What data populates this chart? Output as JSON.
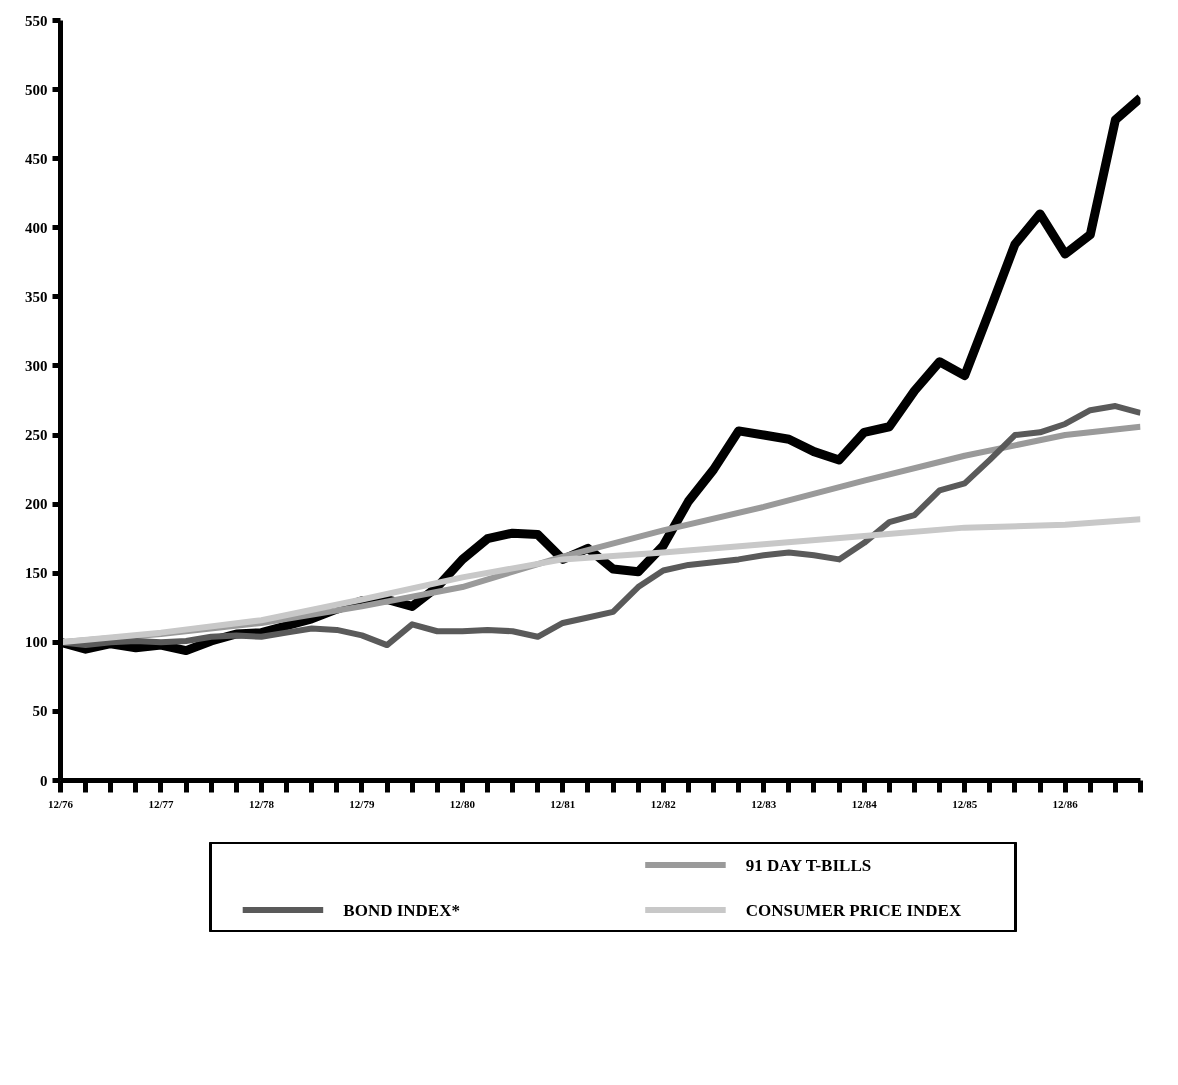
{
  "chart_data": {
    "type": "line",
    "xlim": [
      "1976-12",
      "1987-09"
    ],
    "ylim": [
      0,
      550
    ],
    "yticks": [
      0,
      50,
      100,
      150,
      200,
      250,
      300,
      350,
      400,
      450,
      500,
      550
    ],
    "xticks": [
      {
        "value": "1976-12",
        "label": "12/76"
      },
      {
        "value": "1977-03",
        "label": null
      },
      {
        "value": "1977-06",
        "label": null
      },
      {
        "value": "1977-09",
        "label": null
      },
      {
        "value": "1977-12",
        "label": "12/77"
      },
      {
        "value": "1978-03",
        "label": null
      },
      {
        "value": "1978-06",
        "label": null
      },
      {
        "value": "1978-09",
        "label": null
      },
      {
        "value": "1978-12",
        "label": "12/78"
      },
      {
        "value": "1979-03",
        "label": null
      },
      {
        "value": "1979-06",
        "label": null
      },
      {
        "value": "1979-09",
        "label": null
      },
      {
        "value": "1979-12",
        "label": "12/79"
      },
      {
        "value": "1980-03",
        "label": null
      },
      {
        "value": "1980-06",
        "label": null
      },
      {
        "value": "1980-09",
        "label": null
      },
      {
        "value": "1980-12",
        "label": "12/80"
      },
      {
        "value": "1981-03",
        "label": null
      },
      {
        "value": "1981-06",
        "label": null
      },
      {
        "value": "1981-09",
        "label": null
      },
      {
        "value": "1981-12",
        "label": "12/81"
      },
      {
        "value": "1982-03",
        "label": null
      },
      {
        "value": "1982-06",
        "label": null
      },
      {
        "value": "1982-09",
        "label": null
      },
      {
        "value": "1982-12",
        "label": "12/82"
      },
      {
        "value": "1983-03",
        "label": null
      },
      {
        "value": "1983-06",
        "label": null
      },
      {
        "value": "1983-09",
        "label": null
      },
      {
        "value": "1983-12",
        "label": "12/83"
      },
      {
        "value": "1984-03",
        "label": null
      },
      {
        "value": "1984-06",
        "label": null
      },
      {
        "value": "1984-09",
        "label": null
      },
      {
        "value": "1984-12",
        "label": "12/84"
      },
      {
        "value": "1985-03",
        "label": null
      },
      {
        "value": "1985-06",
        "label": null
      },
      {
        "value": "1985-09",
        "label": null
      },
      {
        "value": "1985-12",
        "label": "12/85"
      },
      {
        "value": "1986-03",
        "label": null
      },
      {
        "value": "1986-06",
        "label": null
      },
      {
        "value": "1986-09",
        "label": null
      },
      {
        "value": "1986-12",
        "label": "12/86"
      },
      {
        "value": "1987-03",
        "label": null
      },
      {
        "value": "1987-06",
        "label": null
      },
      {
        "value": "1987-09",
        "label": null
      }
    ],
    "grid": false,
    "legend": "bottom",
    "series": [
      {
        "color": "#000000",
        "x": [
          "1976-12",
          "1977-03",
          "1977-06",
          "1977-09",
          "1977-12",
          "1978-03",
          "1978-06",
          "1978-09",
          "1978-12",
          "1979-03",
          "1979-06",
          "1979-09",
          "1979-12",
          "1980-03",
          "1980-06",
          "1980-09",
          "1980-12",
          "1981-03",
          "1981-06",
          "1981-09",
          "1981-12",
          "1982-03",
          "1982-06",
          "1982-09",
          "1982-12",
          "1983-03",
          "1983-06",
          "1983-09",
          "1983-12",
          "1984-03",
          "1984-06",
          "1984-09",
          "1984-12",
          "1985-03",
          "1985-06",
          "1985-09",
          "1985-12",
          "1986-03",
          "1986-06",
          "1986-09",
          "1986-12",
          "1987-03",
          "1987-06",
          "1987-09"
        ],
        "values": [
          100,
          95,
          99,
          96,
          98,
          94,
          101,
          106,
          107,
          112,
          117,
          124,
          130,
          131,
          126,
          140,
          160,
          175,
          179,
          178,
          160,
          168,
          153,
          151,
          170,
          202,
          225,
          253,
          250,
          247,
          238,
          232,
          252,
          256,
          282,
          303,
          293,
          340,
          388,
          410,
          381,
          395,
          478,
          494
        ]
      },
      {
        "name": "91 DAY T-BILLS",
        "color": "#9a9a9a",
        "x": [
          "1976-12",
          "1977-12",
          "1978-12",
          "1979-12",
          "1980-12",
          "1981-12",
          "1982-12",
          "1983-12",
          "1984-12",
          "1985-12",
          "1986-12",
          "1987-09"
        ],
        "values": [
          100,
          106,
          114,
          126,
          140,
          162,
          181,
          198,
          217,
          235,
          250,
          256
        ]
      },
      {
        "name": "BOND INDEX*",
        "color": "#5a5a5a",
        "x": [
          "1976-12",
          "1977-03",
          "1977-06",
          "1977-09",
          "1977-12",
          "1978-03",
          "1978-06",
          "1978-09",
          "1978-12",
          "1979-03",
          "1979-06",
          "1979-09",
          "1979-12",
          "1980-03",
          "1980-06",
          "1980-09",
          "1980-12",
          "1981-03",
          "1981-06",
          "1981-09",
          "1981-12",
          "1982-03",
          "1982-06",
          "1982-09",
          "1982-12",
          "1983-03",
          "1983-06",
          "1983-09",
          "1983-12",
          "1984-03",
          "1984-06",
          "1984-09",
          "1984-12",
          "1985-03",
          "1985-06",
          "1985-09",
          "1985-12",
          "1986-03",
          "1986-06",
          "1986-09",
          "1986-12",
          "1987-03",
          "1987-06",
          "1987-09"
        ],
        "values": [
          100,
          98,
          100,
          101,
          100,
          101,
          104,
          105,
          104,
          107,
          110,
          109,
          105,
          98,
          113,
          108,
          108,
          109,
          108,
          104,
          114,
          118,
          122,
          140,
          152,
          156,
          158,
          160,
          163,
          165,
          163,
          160,
          172,
          187,
          192,
          210,
          215,
          232,
          250,
          252,
          258,
          268,
          271,
          266
        ]
      },
      {
        "name": "CONSUMER PRICE INDEX",
        "color": "#c8c8c8",
        "x": [
          "1976-12",
          "1977-12",
          "1978-12",
          "1979-12",
          "1980-12",
          "1981-12",
          "1982-12",
          "1983-12",
          "1984-12",
          "1985-12",
          "1986-12",
          "1987-09"
        ],
        "values": [
          100,
          107,
          116,
          131,
          147,
          160,
          165,
          171,
          177,
          183,
          185,
          189
        ]
      }
    ]
  }
}
